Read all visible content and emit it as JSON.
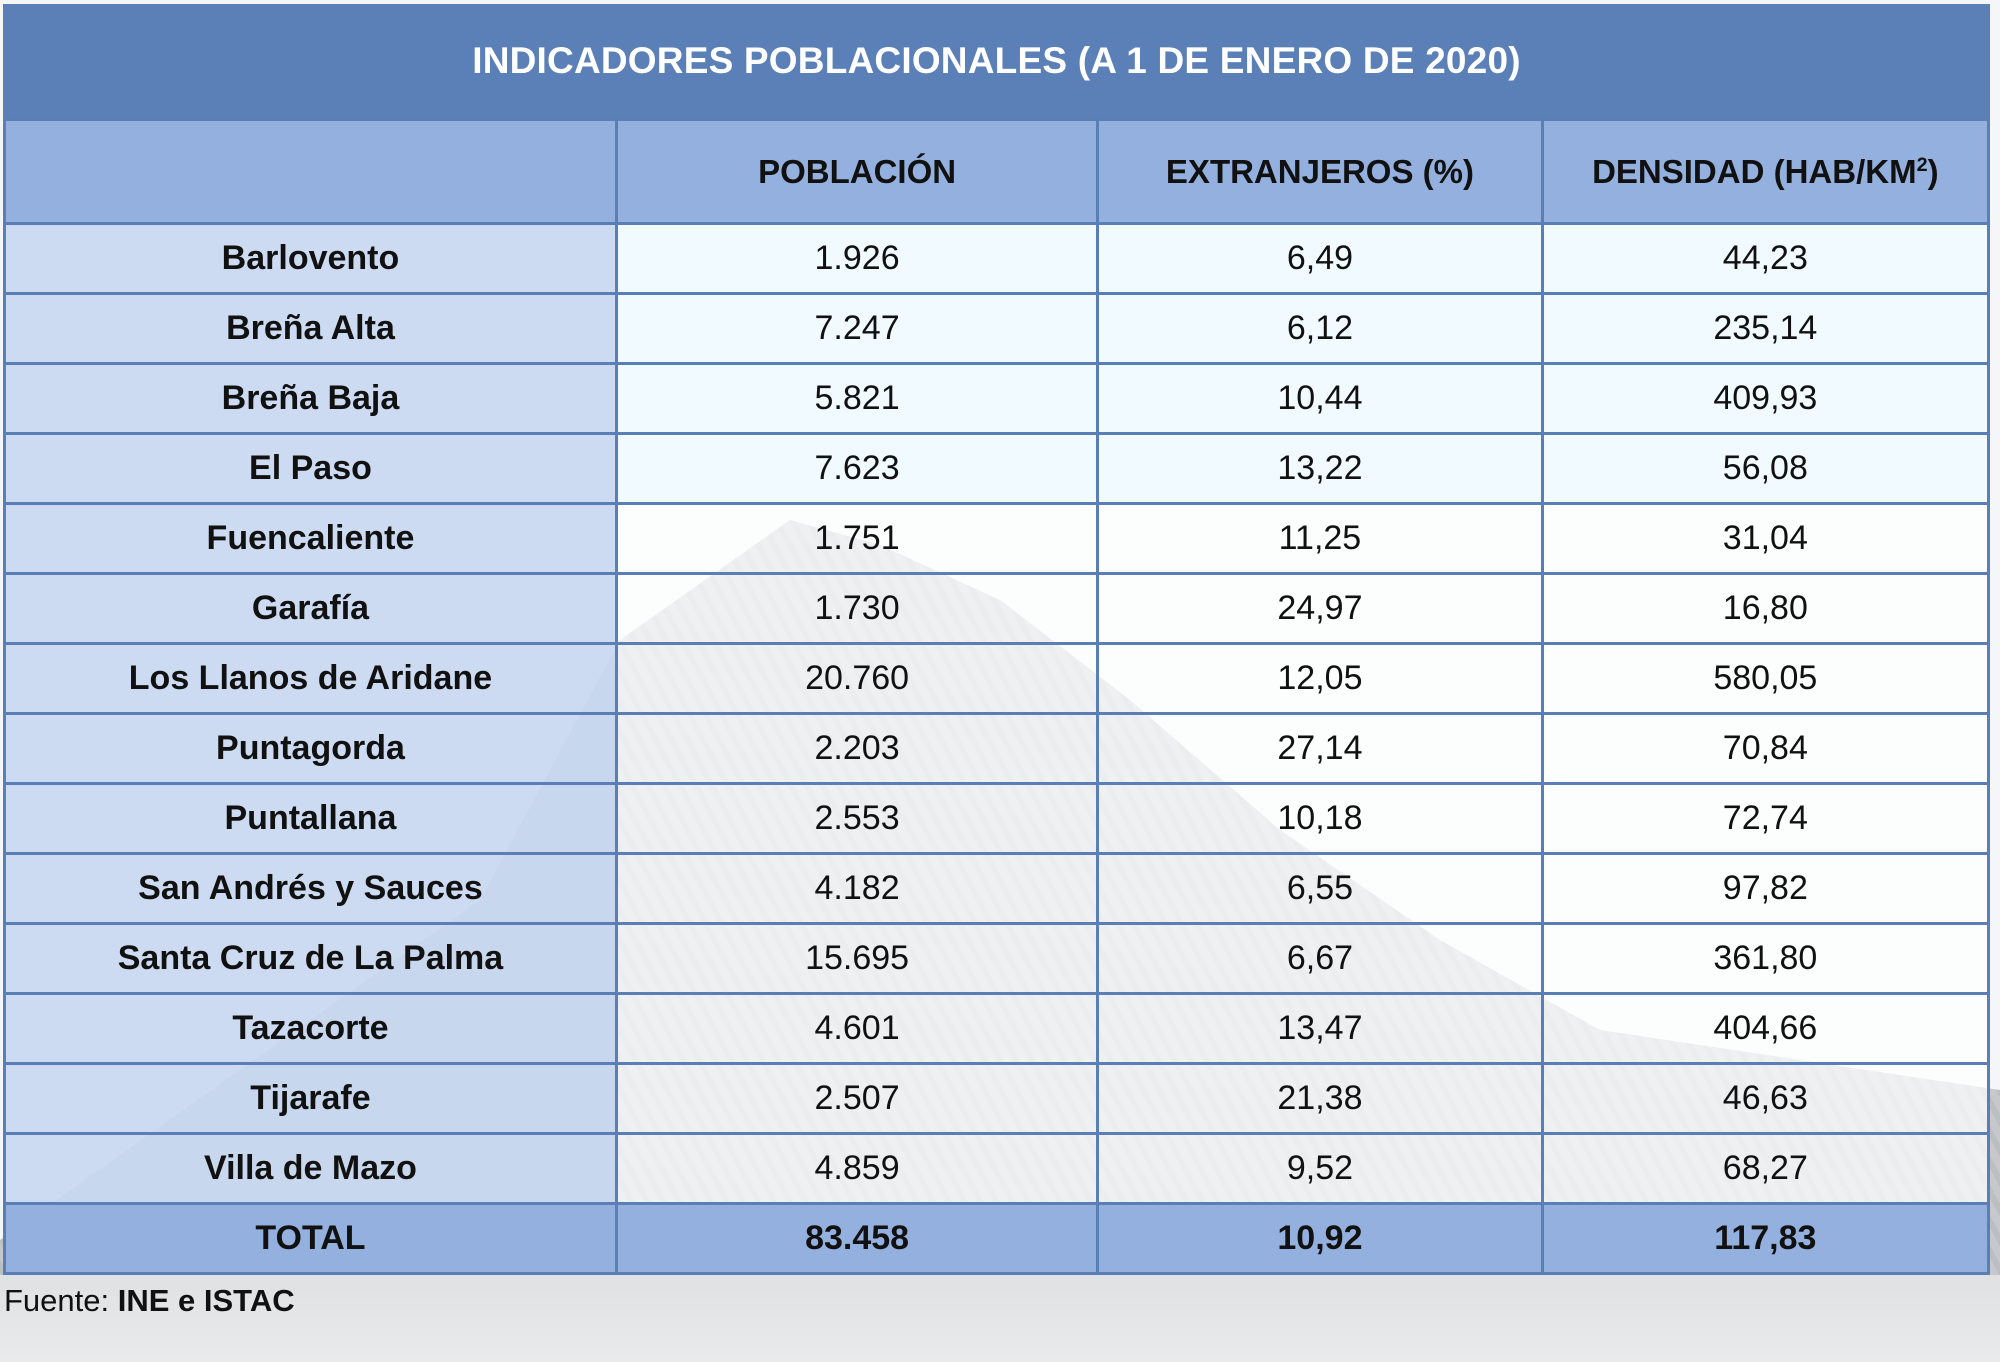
{
  "title": "INDICADORES POBLACIONALES (A 1 DE ENERO DE 2020)",
  "columns": {
    "municipality": "",
    "population": "POBLACIÓN",
    "foreigners": "EXTRANJEROS (%)",
    "density_base": "DENSIDAD (HAB/KM",
    "density_sup": "2",
    "density_close": ")"
  },
  "rows": [
    {
      "name": "Barlovento",
      "population": "1.926",
      "foreigners": "6,49",
      "density": "44,23"
    },
    {
      "name": "Breña Alta",
      "population": "7.247",
      "foreigners": "6,12",
      "density": "235,14"
    },
    {
      "name": "Breña Baja",
      "population": "5.821",
      "foreigners": "10,44",
      "density": "409,93"
    },
    {
      "name": "El Paso",
      "population": "7.623",
      "foreigners": "13,22",
      "density": "56,08"
    },
    {
      "name": "Fuencaliente",
      "population": "1.751",
      "foreigners": "11,25",
      "density": "31,04"
    },
    {
      "name": "Garafía",
      "population": "1.730",
      "foreigners": "24,97",
      "density": "16,80"
    },
    {
      "name": "Los Llanos de Aridane",
      "population": "20.760",
      "foreigners": "12,05",
      "density": "580,05"
    },
    {
      "name": "Puntagorda",
      "population": "2.203",
      "foreigners": "27,14",
      "density": "70,84"
    },
    {
      "name": "Puntallana",
      "population": "2.553",
      "foreigners": "10,18",
      "density": "72,74"
    },
    {
      "name": "San Andrés y Sauces",
      "population": "4.182",
      "foreigners": "6,55",
      "density": "97,82"
    },
    {
      "name": "Santa Cruz de La Palma",
      "population": "15.695",
      "foreigners": "6,67",
      "density": "361,80"
    },
    {
      "name": "Tazacorte",
      "population": "4.601",
      "foreigners": "13,47",
      "density": "404,66"
    },
    {
      "name": "Tijarafe",
      "population": "2.507",
      "foreigners": "21,38",
      "density": "46,63"
    },
    {
      "name": "Villa de Mazo",
      "population": "4.859",
      "foreigners": "9,52",
      "density": "68,27"
    }
  ],
  "total": {
    "name": "TOTAL",
    "population": "83.458",
    "foreigners": "10,92",
    "density": "117,83"
  },
  "source": {
    "label": "Fuente: ",
    "value": "INE e ISTAC"
  },
  "colors": {
    "title_bg": "#5b80b7",
    "header_bg": "#93b0de",
    "name_cell_bg": "#c8d8f0",
    "border": "#5a7fb6"
  }
}
